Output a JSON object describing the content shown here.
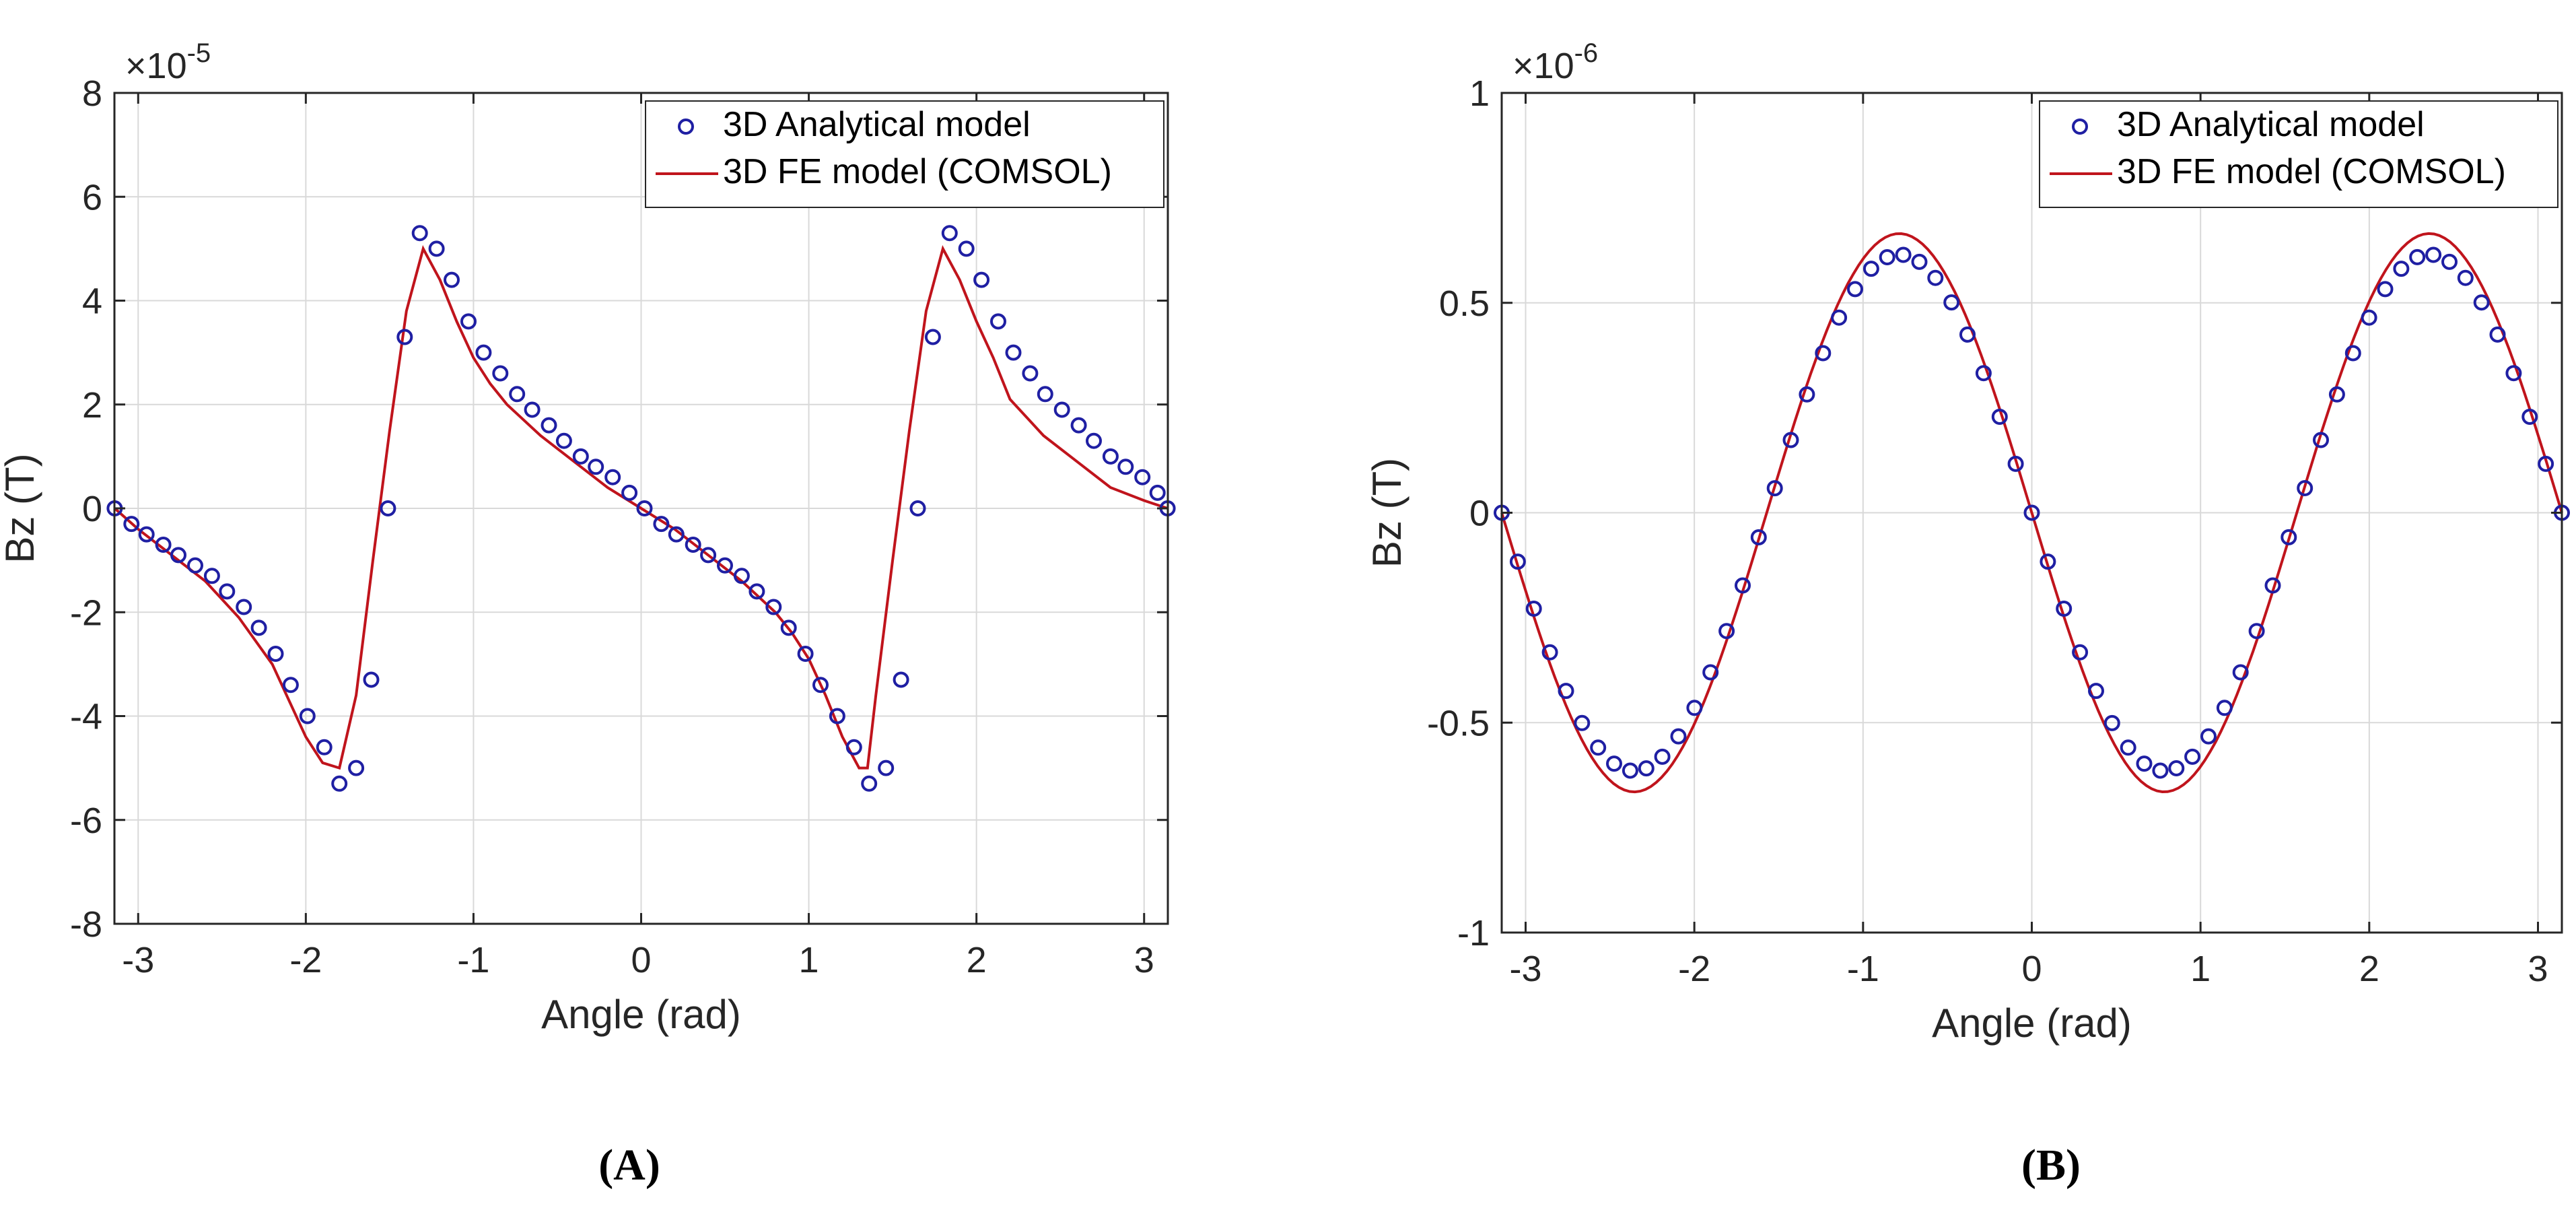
{
  "chart_data": [
    {
      "type": "line",
      "panel": "A",
      "xlabel": "Angle (rad)",
      "ylabel": "Bz (T)",
      "exponent": "×10",
      "exponent_power": "-5",
      "xlim": [
        -3.1416,
        3.1416
      ],
      "ylim": [
        -8,
        8
      ],
      "xticks": [
        -3,
        -2,
        -1,
        0,
        1,
        2,
        3
      ],
      "yticks": [
        -8,
        -6,
        -4,
        -2,
        0,
        2,
        4,
        6,
        8
      ],
      "grid": true,
      "legend": "top-right",
      "series": [
        {
          "name": "3D Analytical model",
          "style": "markers",
          "marker": "circle",
          "color": "#1f1fa3",
          "x": [
            -3.14,
            -3.04,
            -2.95,
            -2.85,
            -2.76,
            -2.66,
            -2.56,
            -2.47,
            -2.37,
            -2.28,
            -2.18,
            -2.09,
            -1.99,
            -1.89,
            -1.8,
            -1.7,
            -1.61,
            -1.51,
            -1.41,
            -1.32,
            -1.22,
            -1.13,
            -1.03,
            -0.94,
            -0.84,
            -0.74,
            -0.65,
            -0.55,
            -0.46,
            -0.36,
            -0.27,
            -0.17,
            -0.07,
            0.02,
            0.12,
            0.21,
            0.31,
            0.4,
            0.5,
            0.6,
            0.69,
            0.79,
            0.88,
            0.98,
            1.07,
            1.17,
            1.27,
            1.36,
            1.46,
            1.55,
            1.65,
            1.74,
            1.84,
            1.94,
            2.03,
            2.13,
            2.22,
            2.32,
            2.41,
            2.51,
            2.61,
            2.7,
            2.8,
            2.89,
            2.99,
            3.08,
            3.14
          ],
          "y": [
            0.0,
            -0.3,
            -0.5,
            -0.7,
            -0.9,
            -1.1,
            -1.3,
            -1.6,
            -1.9,
            -2.3,
            -2.8,
            -3.4,
            -4.0,
            -4.6,
            -5.3,
            -5.0,
            -3.3,
            0.0,
            3.3,
            5.3,
            5.0,
            4.4,
            3.6,
            3.0,
            2.6,
            2.2,
            1.9,
            1.6,
            1.3,
            1.0,
            0.8,
            0.6,
            0.3,
            0.0,
            -0.3,
            -0.5,
            -0.7,
            -0.9,
            -1.1,
            -1.3,
            -1.6,
            -1.9,
            -2.3,
            -2.8,
            -3.4,
            -4.0,
            -4.6,
            -5.3,
            -5.0,
            -3.3,
            0.0,
            3.3,
            5.3,
            5.0,
            4.4,
            3.6,
            3.0,
            2.6,
            2.2,
            1.9,
            1.6,
            1.3,
            1.0,
            0.8,
            0.6,
            0.3,
            0.0
          ]
        },
        {
          "name": "3D FE model (COMSOL)",
          "style": "line",
          "color": "#c0141c",
          "x": [
            -3.14,
            -3.0,
            -2.8,
            -2.6,
            -2.4,
            -2.2,
            -2.1,
            -2.0,
            -1.9,
            -1.8,
            -1.7,
            -1.6,
            -1.5,
            -1.4,
            -1.3,
            -1.2,
            -1.1,
            -1.0,
            -0.9,
            -0.8,
            -0.6,
            -0.4,
            -0.2,
            0.0,
            0.2,
            0.4,
            0.6,
            0.8,
            0.9,
            1.0,
            1.1,
            1.2,
            1.3,
            1.35,
            1.4,
            1.5,
            1.6,
            1.7,
            1.8,
            1.9,
            2.0,
            2.1,
            2.2,
            2.4,
            2.6,
            2.8,
            3.0,
            3.14
          ],
          "y": [
            0.0,
            -0.4,
            -0.9,
            -1.4,
            -2.1,
            -3.0,
            -3.7,
            -4.4,
            -4.9,
            -5.0,
            -3.6,
            -1.0,
            1.5,
            3.8,
            5.0,
            4.4,
            3.6,
            2.9,
            2.4,
            2.0,
            1.4,
            0.9,
            0.4,
            0.0,
            -0.4,
            -0.9,
            -1.4,
            -2.0,
            -2.4,
            -2.9,
            -3.6,
            -4.4,
            -5.0,
            -5.0,
            -3.6,
            -1.0,
            1.5,
            3.8,
            5.0,
            4.4,
            3.6,
            2.9,
            2.1,
            1.4,
            0.9,
            0.4,
            0.15,
            0.0
          ]
        }
      ]
    },
    {
      "type": "line",
      "panel": "B",
      "xlabel": "Angle (rad)",
      "ylabel": "Bz (T)",
      "exponent": "×10",
      "exponent_power": "-6",
      "xlim": [
        -3.1416,
        3.1416
      ],
      "ylim": [
        -1,
        1
      ],
      "xticks": [
        -3,
        -2,
        -1,
        0,
        1,
        2,
        3
      ],
      "yticks": [
        -1,
        -0.5,
        0,
        0.5,
        1
      ],
      "grid": true,
      "legend": "top-right",
      "series": [
        {
          "name": "3D Analytical model",
          "style": "markers",
          "marker": "circle",
          "color": "#1f1fa3",
          "amplitude": 0.615,
          "x_start": -3.1416,
          "x_end": 3.1416,
          "count": 67,
          "formula": "-0.615*sin(2x)"
        },
        {
          "name": "3D FE model (COMSOL)",
          "style": "line",
          "color": "#c0141c",
          "amplitude": 0.665,
          "x_start": -3.1416,
          "x_end": 3.1416,
          "count": 200,
          "formula": "-0.665*sin(2x)"
        }
      ]
    }
  ],
  "panel_labels": [
    "A",
    "B"
  ],
  "colors": {
    "grid": "#d9d9d9",
    "axis": "#262626",
    "analytical": "#1f1fa3",
    "fe": "#c0141c"
  }
}
